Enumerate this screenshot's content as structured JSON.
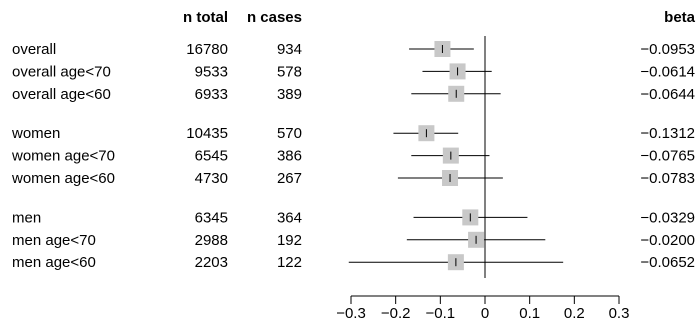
{
  "chart_data": {
    "type": "forest",
    "columns": {
      "n_total": "n total",
      "n_cases": "n cases",
      "beta": "beta"
    },
    "groups": [
      {
        "rows": [
          {
            "label": "overall",
            "n_total": "16780",
            "n_cases": "934",
            "beta_label": "−0.0953",
            "beta": -0.0953,
            "ci": [
              -0.17,
              -0.025
            ]
          },
          {
            "label": "overall age<70",
            "n_total": "9533",
            "n_cases": "578",
            "beta_label": "−0.0614",
            "beta": -0.0614,
            "ci": [
              -0.14,
              0.015
            ]
          },
          {
            "label": "overall age<60",
            "n_total": "6933",
            "n_cases": "389",
            "beta_label": "−0.0644",
            "beta": -0.0644,
            "ci": [
              -0.165,
              0.035
            ]
          }
        ]
      },
      {
        "rows": [
          {
            "label": "women",
            "n_total": "10435",
            "n_cases": "570",
            "beta_label": "−0.1312",
            "beta": -0.1312,
            "ci": [
              -0.205,
              -0.06
            ]
          },
          {
            "label": "women age<70",
            "n_total": "6545",
            "n_cases": "386",
            "beta_label": "−0.0765",
            "beta": -0.0765,
            "ci": [
              -0.165,
              0.01
            ]
          },
          {
            "label": "women age<60",
            "n_total": "4730",
            "n_cases": "267",
            "beta_label": "−0.0783",
            "beta": -0.0783,
            "ci": [
              -0.195,
              0.04
            ]
          }
        ]
      },
      {
        "rows": [
          {
            "label": "men",
            "n_total": "6345",
            "n_cases": "364",
            "beta_label": "−0.0329",
            "beta": -0.0329,
            "ci": [
              -0.16,
              0.095
            ]
          },
          {
            "label": "men age<70",
            "n_total": "2988",
            "n_cases": "192",
            "beta_label": "−0.0200",
            "beta": -0.02,
            "ci": [
              -0.175,
              0.135
            ]
          },
          {
            "label": "men age<60",
            "n_total": "2203",
            "n_cases": "122",
            "beta_label": "−0.0652",
            "beta": -0.0652,
            "ci": [
              -0.305,
              0.175
            ]
          }
        ]
      }
    ],
    "x_axis": {
      "range": [
        -0.3,
        0.3
      ],
      "ticks": [
        -0.3,
        -0.2,
        -0.1,
        0,
        0.1,
        0.2,
        0.3
      ],
      "tick_labels": [
        "−0.3",
        "−0.2",
        "−0.1",
        "0",
        "0.1",
        "0.2",
        "0.3"
      ]
    },
    "reference_line": 0,
    "box_color": "#c8c8c8",
    "line_color": "#000000"
  }
}
